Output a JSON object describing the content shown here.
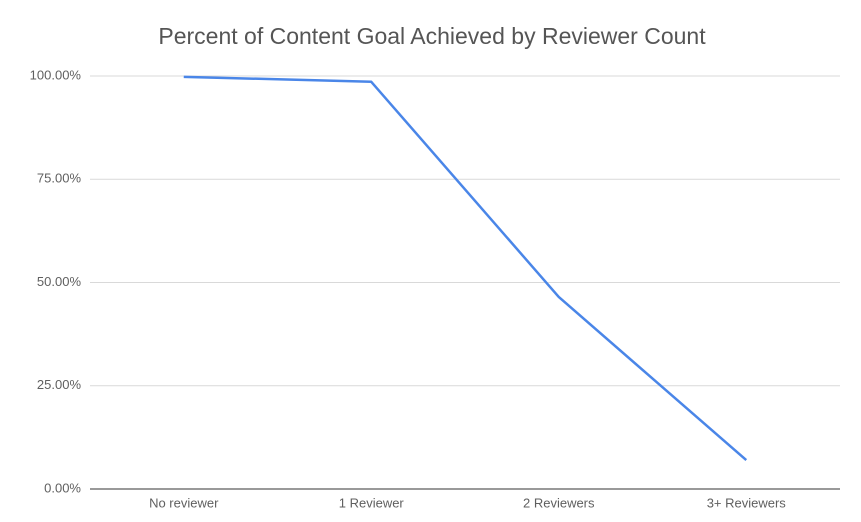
{
  "chart_data": {
    "type": "line",
    "title": "Percent of Content Goal Achieved by Reviewer Count",
    "categories": [
      "No reviewer",
      "1 Reviewer",
      "2 Reviewers",
      "3+ Reviewers"
    ],
    "values": [
      99.8,
      98.6,
      46.5,
      7.0
    ],
    "color": "#4a86e8",
    "ylim": [
      0,
      100
    ],
    "yticks": [
      {
        "value": 0,
        "label": "0.00%"
      },
      {
        "value": 25,
        "label": "25.00%"
      },
      {
        "value": 50,
        "label": "50.00%"
      },
      {
        "value": 75,
        "label": "75.00%"
      },
      {
        "value": 100,
        "label": "100.00%"
      }
    ],
    "grid": true
  }
}
